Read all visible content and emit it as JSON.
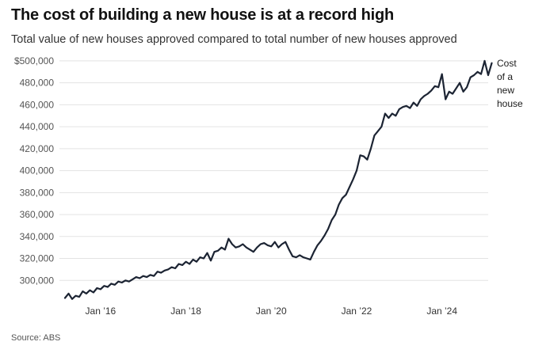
{
  "title": "The cost of building a new house is at a record high",
  "subtitle": "Total value of new houses approved compared to total number of new houses approved",
  "source": "Source: ABS",
  "chart_data": {
    "type": "line",
    "ylim": [
      280000,
      505000
    ],
    "yticks": [
      300000,
      320000,
      340000,
      360000,
      380000,
      400000,
      420000,
      440000,
      460000,
      480000,
      500000
    ],
    "ytick_labels": [
      "300,000",
      "320,000",
      "340,000",
      "360,000",
      "380,000",
      "400,000",
      "420,000",
      "440,000",
      "460,000",
      "480,000",
      "$500,000"
    ],
    "xlim": [
      "2015-03",
      "2025-04"
    ],
    "xtick_positions": [
      "2016-01",
      "2018-01",
      "2020-01",
      "2022-01",
      "2024-01"
    ],
    "xtick_labels": [
      "Jan ’16",
      "Jan ’18",
      "Jan ’20",
      "Jan ’22",
      "Jan ’24"
    ],
    "grid": true,
    "line_color": "#1c2433",
    "series": [
      {
        "name": "Cost of a new house",
        "x": [
          "2015-03",
          "2015-04",
          "2015-05",
          "2015-06",
          "2015-07",
          "2015-08",
          "2015-09",
          "2015-10",
          "2015-11",
          "2015-12",
          "2016-01",
          "2016-02",
          "2016-03",
          "2016-04",
          "2016-05",
          "2016-06",
          "2016-07",
          "2016-08",
          "2016-09",
          "2016-10",
          "2016-11",
          "2016-12",
          "2017-01",
          "2017-02",
          "2017-03",
          "2017-04",
          "2017-05",
          "2017-06",
          "2017-07",
          "2017-08",
          "2017-09",
          "2017-10",
          "2017-11",
          "2017-12",
          "2018-01",
          "2018-02",
          "2018-03",
          "2018-04",
          "2018-05",
          "2018-06",
          "2018-07",
          "2018-08",
          "2018-09",
          "2018-10",
          "2018-11",
          "2018-12",
          "2019-01",
          "2019-02",
          "2019-03",
          "2019-04",
          "2019-05",
          "2019-06",
          "2019-07",
          "2019-08",
          "2019-09",
          "2019-10",
          "2019-11",
          "2019-12",
          "2020-01",
          "2020-02",
          "2020-03",
          "2020-04",
          "2020-05",
          "2020-06",
          "2020-07",
          "2020-08",
          "2020-09",
          "2020-10",
          "2020-11",
          "2020-12",
          "2021-01",
          "2021-02",
          "2021-03",
          "2021-04",
          "2021-05",
          "2021-06",
          "2021-07",
          "2021-08",
          "2021-09",
          "2021-10",
          "2021-11",
          "2021-12",
          "2022-01",
          "2022-02",
          "2022-03",
          "2022-04",
          "2022-05",
          "2022-06",
          "2022-07",
          "2022-08",
          "2022-09",
          "2022-10",
          "2022-11",
          "2022-12",
          "2023-01",
          "2023-02",
          "2023-03",
          "2023-04",
          "2023-05",
          "2023-06",
          "2023-07",
          "2023-08",
          "2023-09",
          "2023-10",
          "2023-11",
          "2023-12",
          "2024-01",
          "2024-02",
          "2024-03",
          "2024-04",
          "2024-05",
          "2024-06",
          "2024-07",
          "2024-08",
          "2024-09",
          "2024-10",
          "2024-11",
          "2024-12",
          "2025-01",
          "2025-02",
          "2025-03"
        ],
        "y": [
          284000,
          288000,
          283000,
          286000,
          285000,
          290000,
          288000,
          291000,
          289000,
          293000,
          292000,
          295000,
          294000,
          297000,
          296000,
          299000,
          298000,
          300000,
          299000,
          301000,
          303000,
          302000,
          304000,
          303000,
          305000,
          304000,
          308000,
          307000,
          309000,
          310000,
          312000,
          311000,
          315000,
          314000,
          317000,
          315000,
          319000,
          317000,
          321000,
          320000,
          325000,
          318000,
          326000,
          327000,
          330000,
          328000,
          338000,
          333000,
          330000,
          331000,
          333000,
          330000,
          328000,
          326000,
          330000,
          333000,
          334000,
          332000,
          331000,
          335000,
          330000,
          333000,
          335000,
          328000,
          322000,
          321000,
          323000,
          321000,
          320000,
          319000,
          326000,
          332000,
          336000,
          341000,
          347000,
          355000,
          360000,
          369000,
          375000,
          378000,
          385000,
          392000,
          400000,
          414000,
          413000,
          410000,
          420000,
          432000,
          436000,
          440000,
          452000,
          448000,
          452000,
          450000,
          456000,
          458000,
          459000,
          457000,
          462000,
          459000,
          465000,
          468000,
          470000,
          473000,
          477000,
          476000,
          488000,
          465000,
          472000,
          470000,
          475000,
          480000,
          472000,
          476000,
          485000,
          487000,
          490000,
          488000,
          500000,
          487000,
          498000
        ]
      }
    ],
    "annotation": [
      "Cost",
      "of a",
      "new",
      "house"
    ]
  }
}
